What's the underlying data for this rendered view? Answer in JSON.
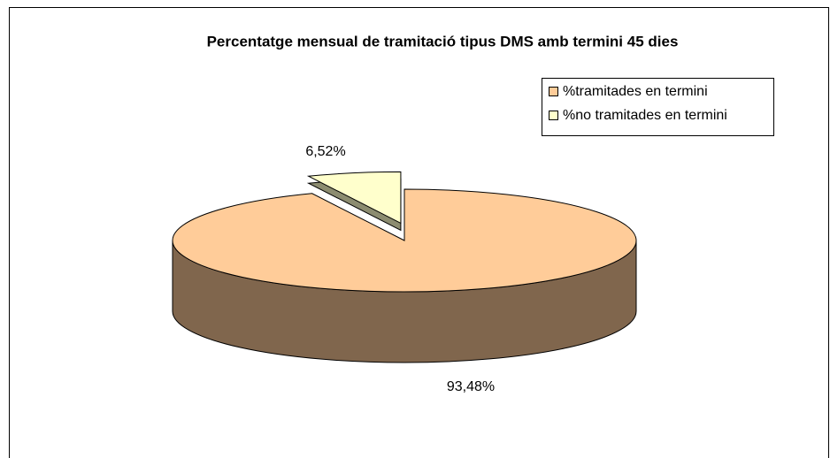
{
  "chart_data": {
    "type": "pie",
    "title": "Percentatge mensual de tramitació tipus DMS amb termini 45 dies",
    "categories": [
      "%tramitades en termini",
      "%no tramitades en termini"
    ],
    "values": [
      93.48,
      6.52
    ],
    "value_labels": [
      "93,48%",
      "6,52%"
    ],
    "colors": [
      "#FFCC99",
      "#FFFFCC"
    ],
    "legend": "upper right"
  }
}
